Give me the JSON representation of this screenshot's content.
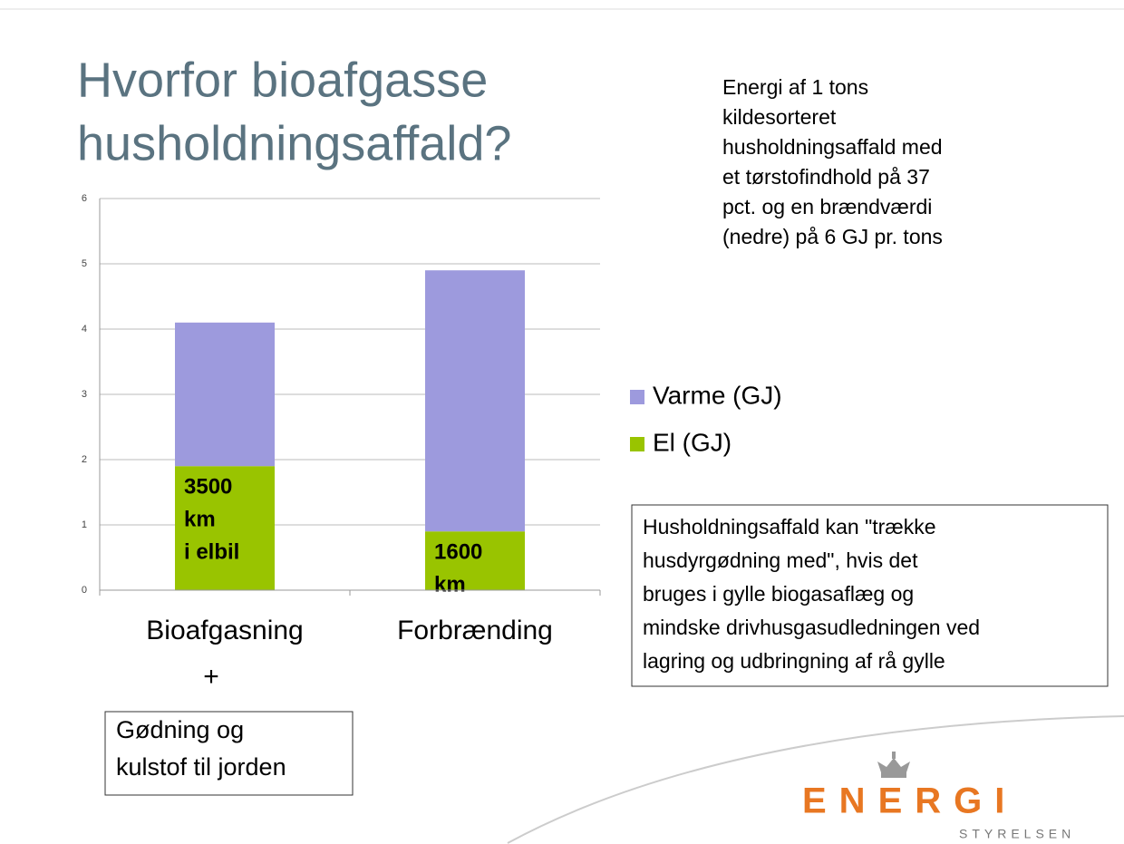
{
  "chart_data": {
    "type": "bar",
    "stacked": true,
    "title_lines": [
      "Hvorfor bioafgasse",
      "husholdningsaffald?"
    ],
    "categories": [
      "Bioafgasning",
      "Forbrænding"
    ],
    "series": [
      {
        "name": "El (GJ)",
        "color": "#99c400",
        "values": [
          1.9,
          0.9
        ]
      },
      {
        "name": "Varme (GJ)",
        "color": "#9d9add",
        "values": [
          2.2,
          4.0
        ]
      }
    ],
    "ylim": [
      0,
      6
    ],
    "yticks": [
      0,
      1,
      2,
      3,
      4,
      5,
      6
    ],
    "grid": true,
    "legend": "right",
    "annotations": [
      {
        "lines": [
          "3500",
          "km",
          "i elbil"
        ]
      },
      {
        "lines": [
          "1600",
          "km"
        ]
      }
    ]
  },
  "slide": {
    "note_lines": [
      "Energi af 1 tons",
      "kildesorteret",
      "husholdningsaffald med",
      "et tørstofindhold på 37",
      "pct. og en brændværdi",
      "(nedre) på 6 GJ pr. tons"
    ],
    "box_right_lines": [
      "Husholdningsaffald kan \"trække",
      "husdyrgødning med\", hvis det",
      "bruges i gylle biogasaflæg og",
      "mindske drivhusgasudledningen ved",
      "lagring og udbringning af rå gylle"
    ],
    "plus": "+",
    "box_left_lines": [
      "Gødning og",
      "kulstof til jorden"
    ],
    "logo": "ENERGI",
    "logo_sub": "STYRELSEN"
  }
}
